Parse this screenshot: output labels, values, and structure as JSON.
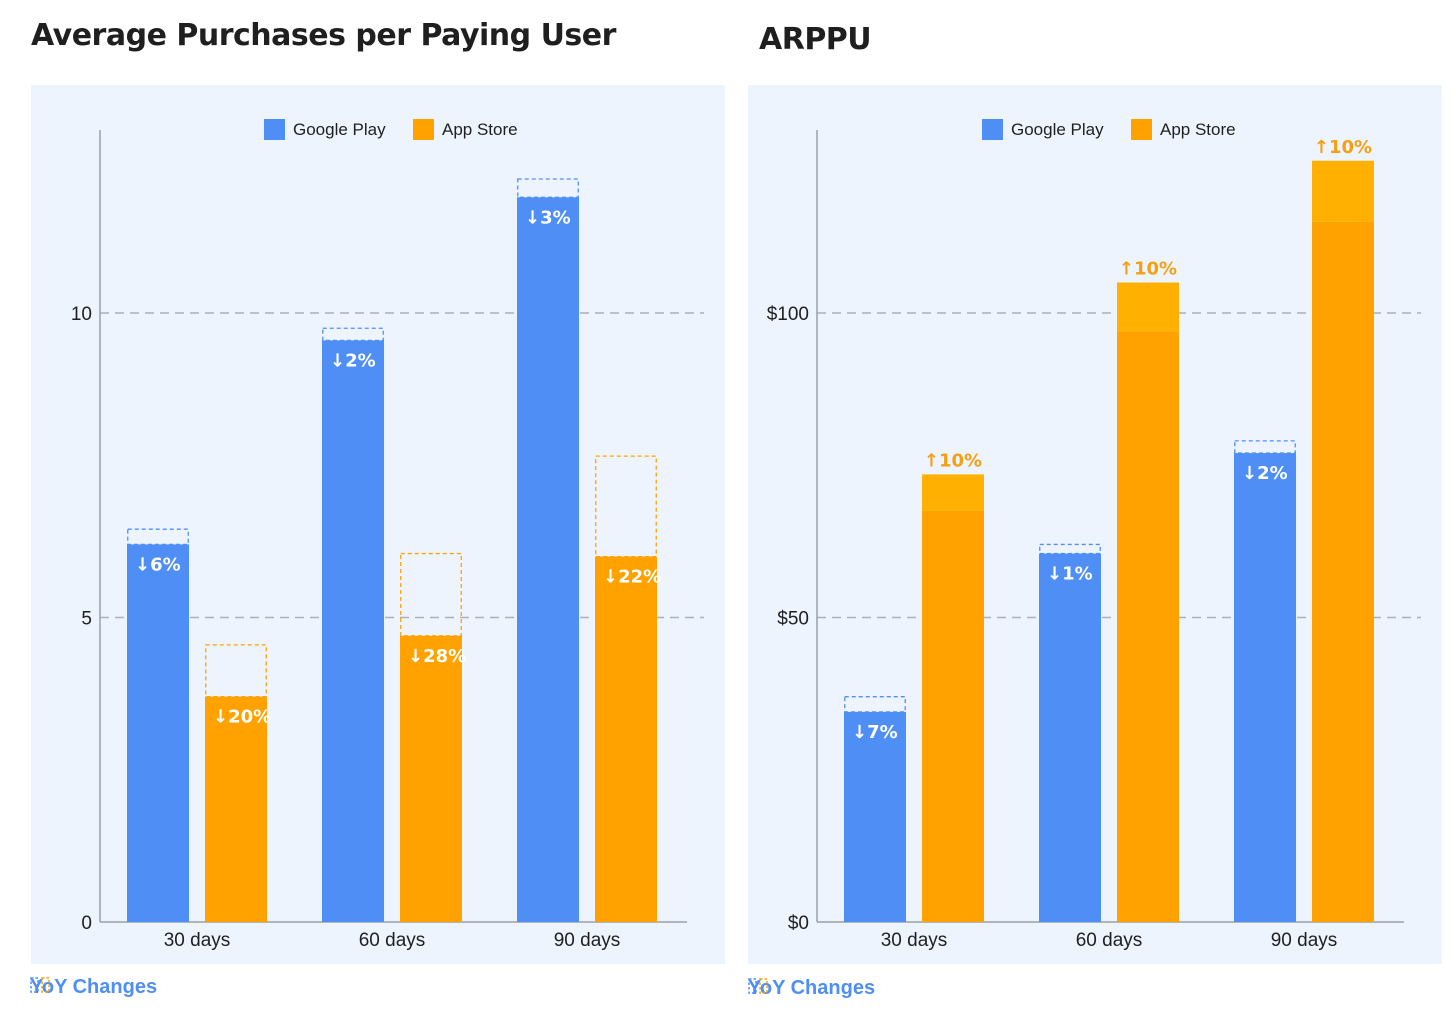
{
  "colors": {
    "google": "#4f8ff5",
    "apple": "#ffa200",
    "apple_up": "#ffb000",
    "google_label": "#ffffff",
    "apple_up_label": "#f5a013",
    "grid": "#aab0bb",
    "axis": "#9aa0a6",
    "panel": "#edf4fd"
  },
  "legend": {
    "google": "Google Play",
    "apple": "App Store"
  },
  "footer": {
    "label": "YoY Changes",
    "icon": "dashed-bars-icon"
  },
  "chart_data": [
    {
      "type": "bar",
      "title": "Average Purchases per Paying User",
      "categories": [
        "30 days",
        "60 days",
        "90 days"
      ],
      "ylim": [
        0,
        13
      ],
      "yticks": [
        0,
        5,
        10
      ],
      "ytick_labels": [
        "0",
        "5",
        "10"
      ],
      "series": [
        {
          "name": "Google Play",
          "key": "google",
          "values": [
            6.2,
            9.55,
            11.9
          ],
          "prev_values": [
            6.45,
            9.75,
            12.2
          ],
          "changes": [
            "↓6%",
            "↓2%",
            "↓3%"
          ],
          "direction": [
            "down",
            "down",
            "down"
          ]
        },
        {
          "name": "App Store",
          "key": "apple",
          "values": [
            3.7,
            4.7,
            6.0
          ],
          "prev_values": [
            4.55,
            6.05,
            7.65
          ],
          "changes": [
            "↓20%",
            "↓28%",
            "↓22%"
          ],
          "direction": [
            "down",
            "down",
            "down"
          ]
        }
      ]
    },
    {
      "type": "bar",
      "title": "ARPPU",
      "categories": [
        "30 days",
        "60 days",
        "90 days"
      ],
      "ylim": [
        0,
        130
      ],
      "yticks": [
        0,
        50,
        100
      ],
      "ytick_labels": [
        "$0",
        "$50",
        "$100"
      ],
      "series": [
        {
          "name": "Google Play",
          "key": "google",
          "values": [
            34.5,
            60.5,
            77.0
          ],
          "prev_values": [
            37.0,
            62.0,
            79.0
          ],
          "changes": [
            "↓7%",
            "↓1%",
            "↓2%"
          ],
          "direction": [
            "down",
            "down",
            "down"
          ]
        },
        {
          "name": "App Store",
          "key": "apple",
          "values": [
            73.5,
            105.0,
            125.0
          ],
          "prev_values": [
            67.5,
            97.0,
            115.0
          ],
          "changes": [
            "↑10%",
            "↑10%",
            "↑10%"
          ],
          "direction": [
            "up",
            "up",
            "up"
          ]
        }
      ]
    }
  ]
}
